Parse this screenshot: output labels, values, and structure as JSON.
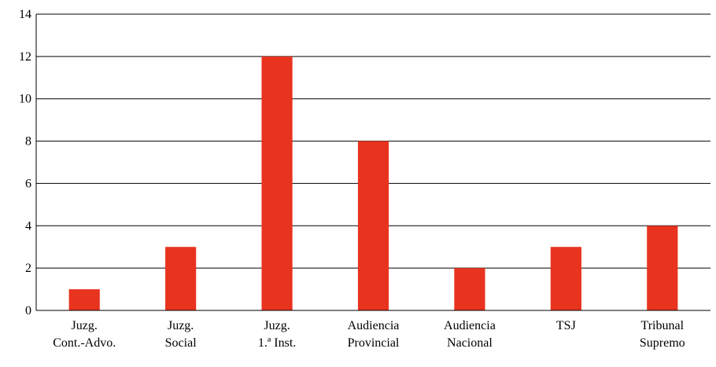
{
  "chart_data": {
    "type": "bar",
    "title": "",
    "xlabel": "",
    "ylabel": "",
    "categories": [
      [
        "Juzg.",
        "Cont.-Advo."
      ],
      [
        "Juzg.",
        "Social"
      ],
      [
        "Juzg.",
        "1.ª Inst."
      ],
      [
        "Audiencia",
        "Provincial"
      ],
      [
        "Audiencia",
        "Nacional"
      ],
      [
        "TSJ"
      ],
      [
        "Tribunal",
        "Supremo"
      ]
    ],
    "values": [
      1,
      3,
      12,
      8,
      2,
      3,
      4
    ],
    "ylim": [
      0,
      14
    ],
    "yticks": [
      0,
      2,
      4,
      6,
      8,
      10,
      12,
      14
    ],
    "grid": true,
    "legend": "none",
    "colors": {
      "bar": "#E8331E",
      "grid": "#000000",
      "axis": "#000000"
    }
  }
}
